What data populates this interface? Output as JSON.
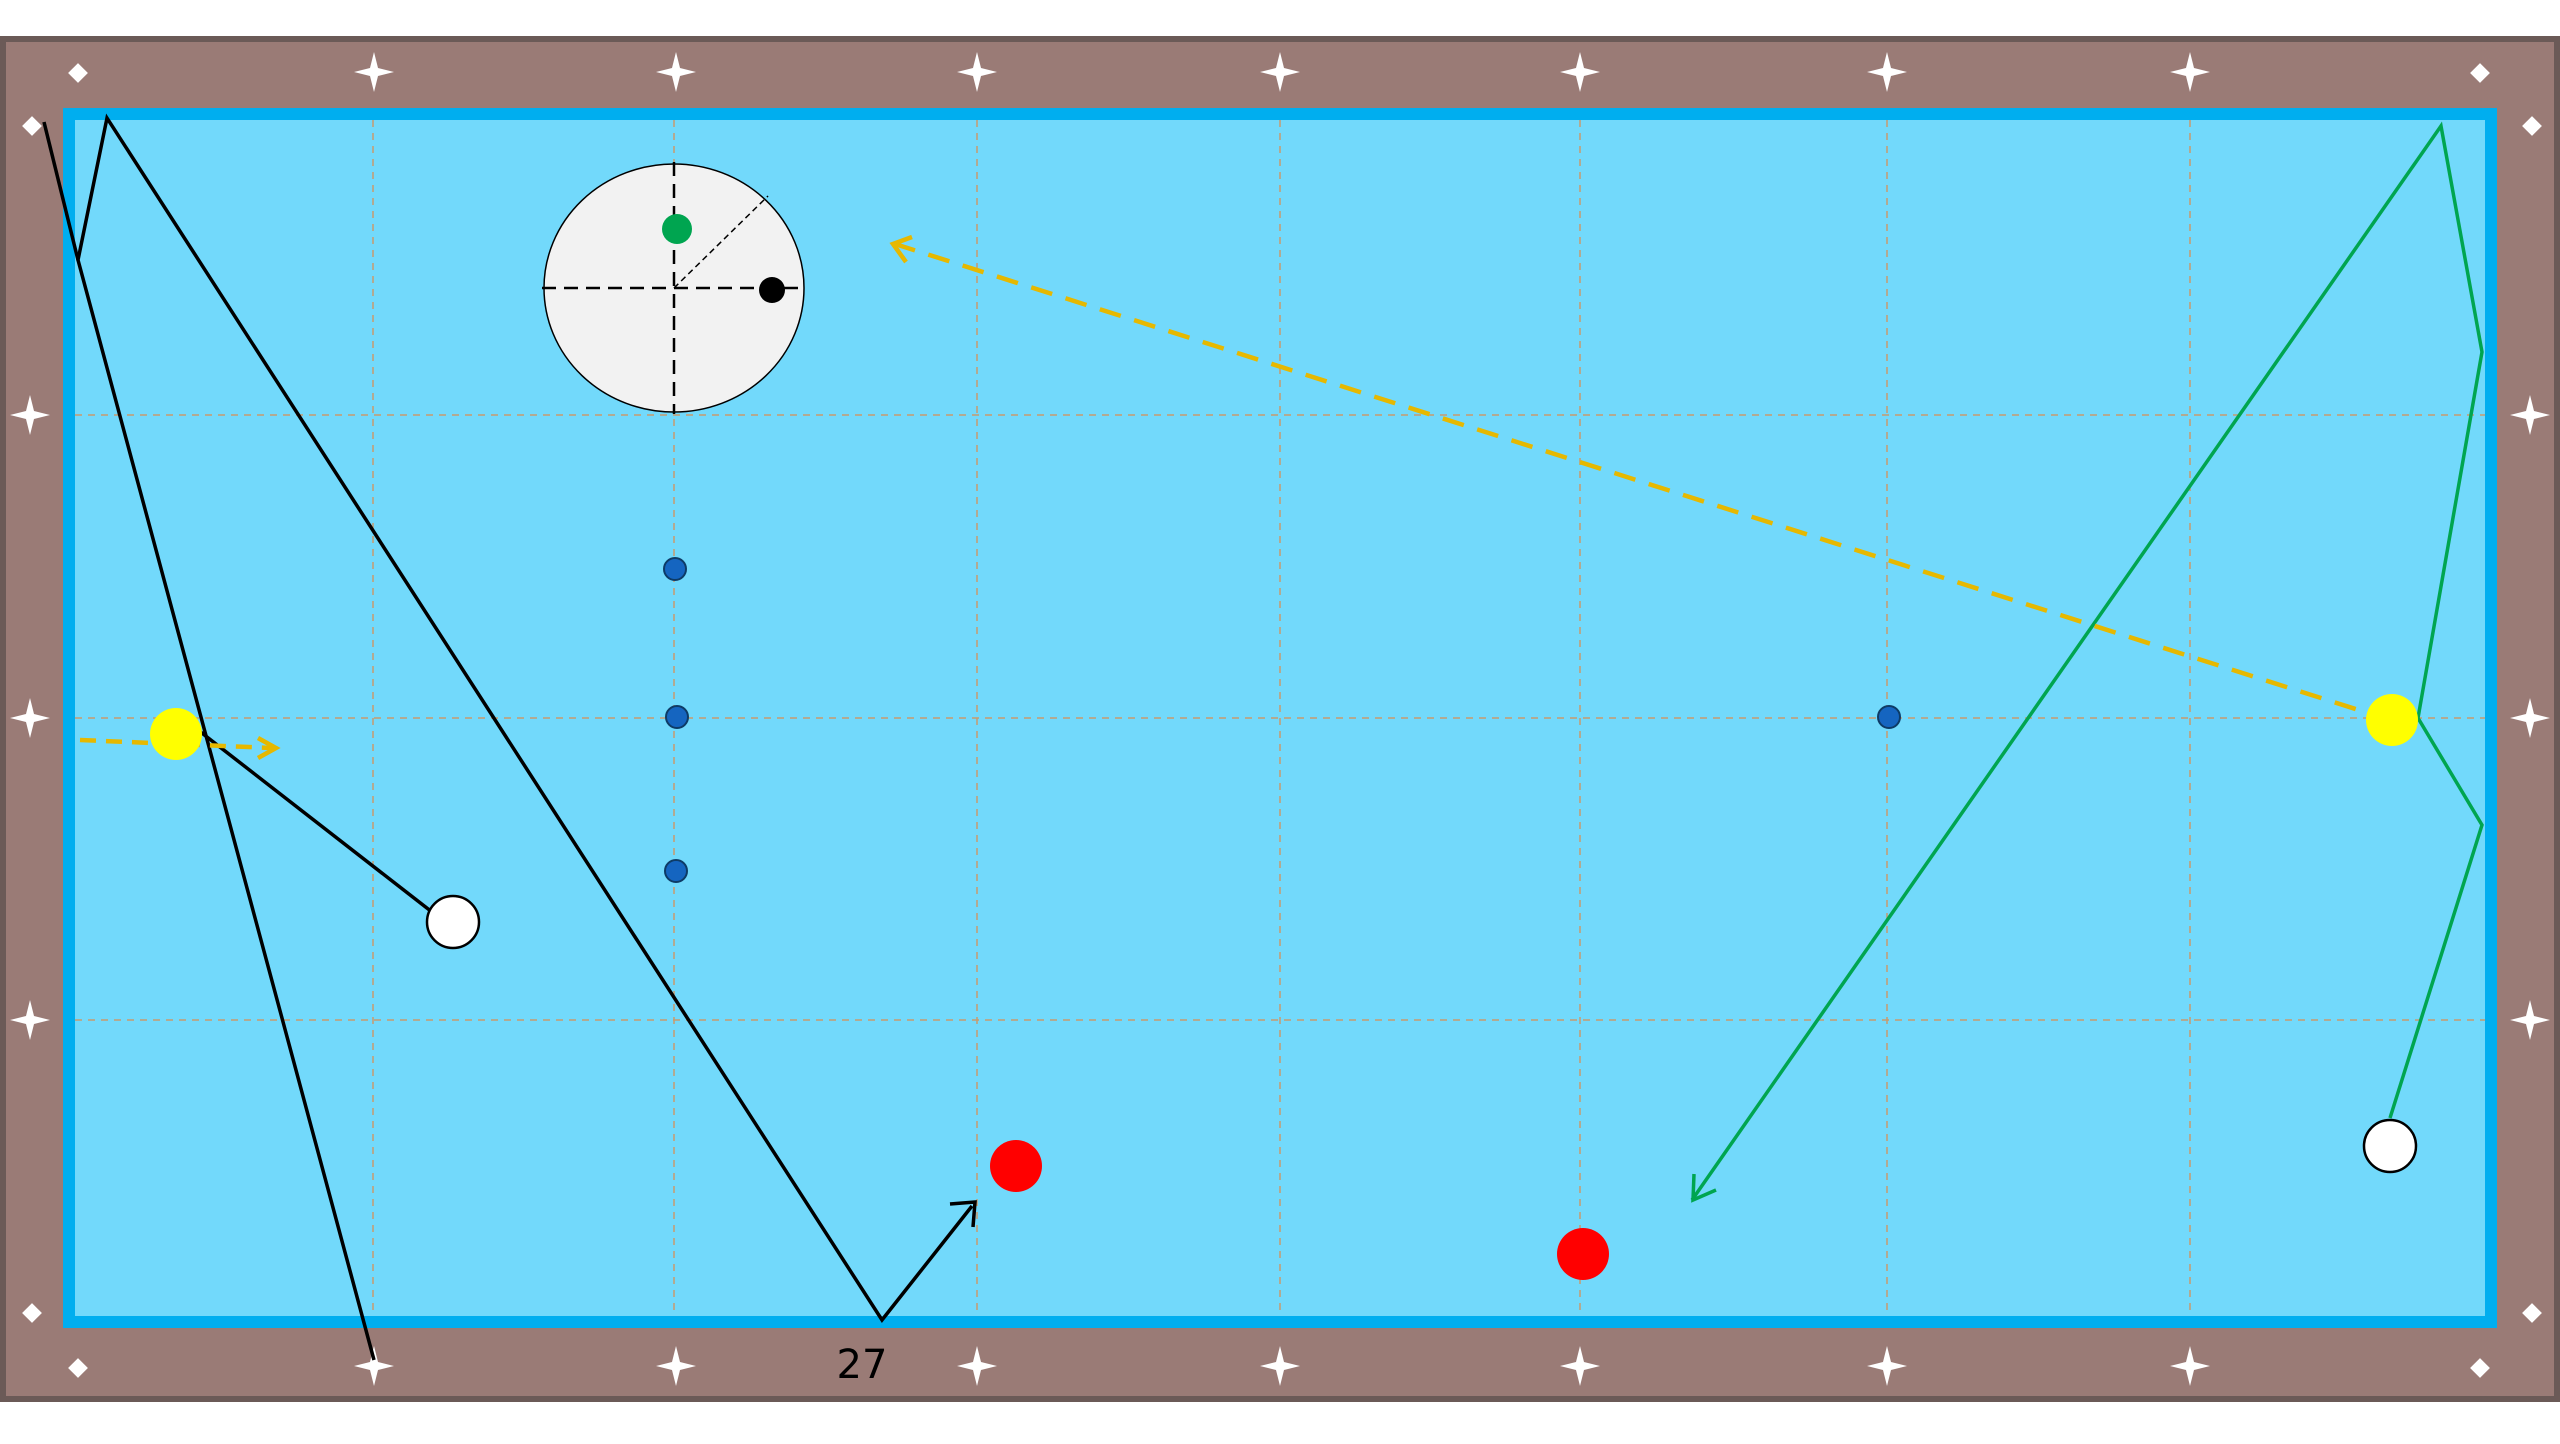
{
  "colors": {
    "background": "#ffffff",
    "rail": "#9a7b76",
    "rail_border": "#6b5a57",
    "cushion": "#00aeef",
    "cloth": "#72d9fb",
    "grid": "#c89b6e",
    "diamond": "#ffffff",
    "white_ball": "#ffffff",
    "yellow_ball": "#ffff00",
    "red_ball": "#ff0000",
    "spot": "#1565c0",
    "path_black": "#000000",
    "path_green": "#00a550",
    "path_yellow": "#e6b800",
    "spin_disc": "#f2f2f2",
    "spin_green": "#00a550",
    "spin_black": "#000000"
  },
  "labels": {
    "shot_number": "27"
  },
  "legend": {
    "green_path": "path_green",
    "black_path": "path_black"
  }
}
